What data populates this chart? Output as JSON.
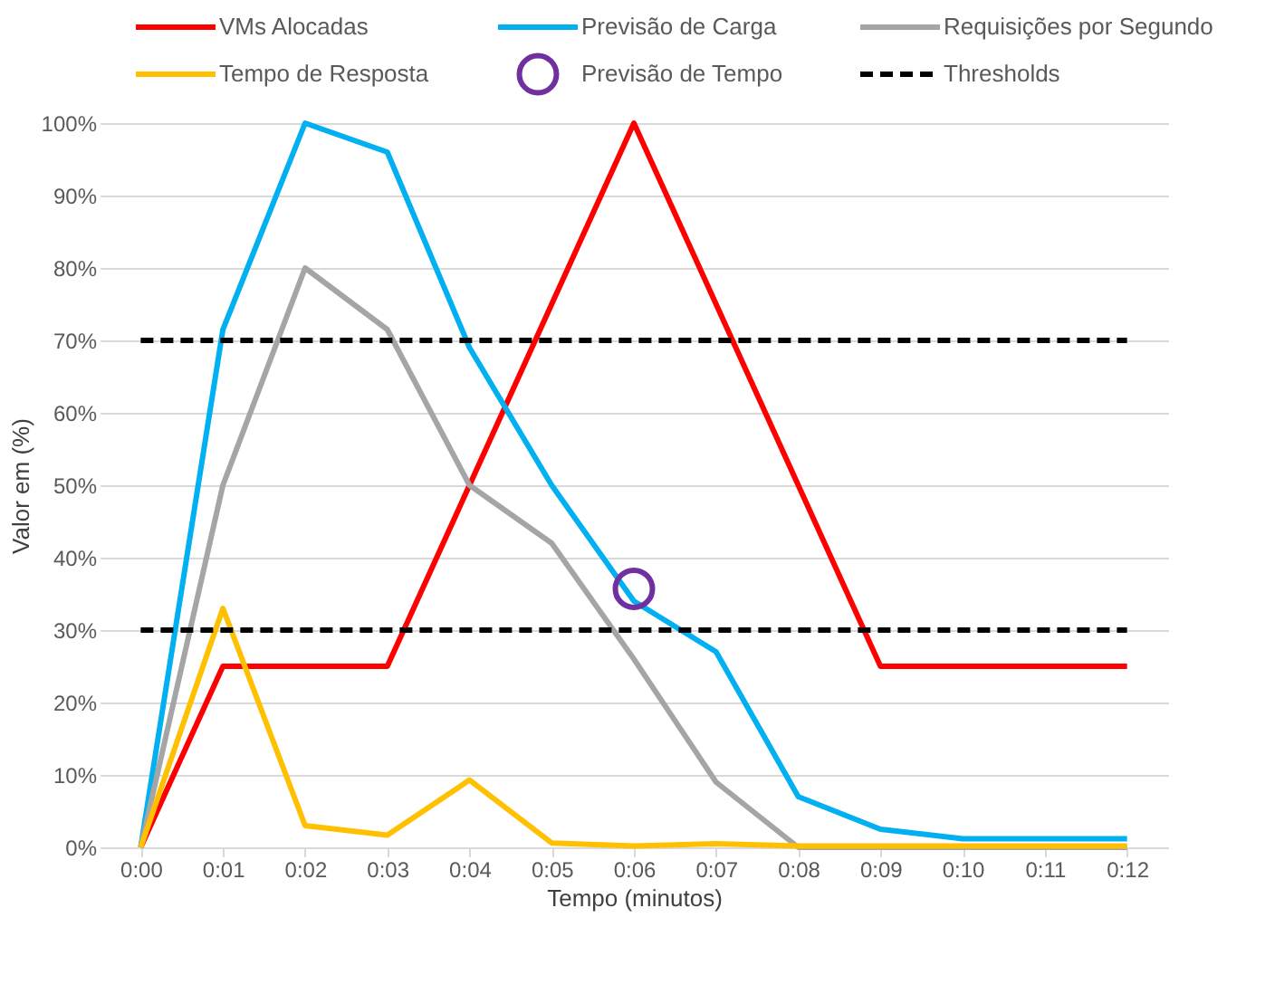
{
  "chart_data": {
    "type": "line",
    "xlabel": "Tempo (minutos)",
    "ylabel": "Valor em (%)",
    "categories": [
      "0:00",
      "0:01",
      "0:02",
      "0:03",
      "0:04",
      "0:05",
      "0:06",
      "0:07",
      "0:08",
      "0:09",
      "0:10",
      "0:11",
      "0:12"
    ],
    "series": [
      {
        "name": "VMs Alocadas",
        "color": "#ff0000",
        "values": [
          0,
          25,
          25,
          25,
          50,
          75,
          100,
          75,
          50,
          25,
          25,
          25,
          25
        ]
      },
      {
        "name": "Previsão de Carga",
        "color": "#00b0f0",
        "values": [
          0,
          71.5,
          100,
          96,
          69,
          50,
          34,
          27,
          7,
          2.5,
          1.2,
          1.2,
          1.2
        ]
      },
      {
        "name": "Requisições por Segundo",
        "color": "#a5a5a5",
        "values": [
          0,
          50,
          80,
          71.5,
          50,
          42,
          26,
          9,
          0,
          0,
          0,
          0,
          0
        ]
      },
      {
        "name": "Tempo de Resposta",
        "color": "#ffc000",
        "values": [
          0,
          33,
          3,
          1.7,
          9.3,
          0.6,
          0.2,
          0.5,
          0.2,
          0.2,
          0.2,
          0.2,
          0.2
        ]
      },
      {
        "name": "Previsão de Tempo",
        "color": "#7030a0",
        "type": "scatter",
        "marker": "circle",
        "values": [
          null,
          null,
          null,
          null,
          null,
          null,
          35.7,
          null,
          null,
          null,
          null,
          null,
          null
        ]
      },
      {
        "name": "Thresholds",
        "color": "#000000",
        "line_style": "dashed",
        "values": [
          70,
          70,
          70,
          70,
          70,
          70,
          70,
          70,
          70,
          70,
          70,
          70,
          70
        ]
      },
      {
        "color": "#000000",
        "line_style": "dashed",
        "values": [
          30,
          30,
          30,
          30,
          30,
          30,
          30,
          30,
          30,
          30,
          30,
          30,
          30
        ]
      }
    ],
    "ylim": [
      0,
      100
    ],
    "yticks": [
      {
        "value": 0,
        "label": "0%"
      },
      {
        "value": 10,
        "label": "10%"
      },
      {
        "value": 20,
        "label": "20%"
      },
      {
        "value": 30,
        "label": "30%"
      },
      {
        "value": 40,
        "label": "40%"
      },
      {
        "value": 50,
        "label": "50%"
      },
      {
        "value": 60,
        "label": "60%"
      },
      {
        "value": 70,
        "label": "70%"
      },
      {
        "value": 80,
        "label": "80%"
      },
      {
        "value": 90,
        "label": "90%"
      },
      {
        "value": 100,
        "label": "100%"
      }
    ],
    "grid": "y",
    "legend": "top",
    "marker": "none"
  }
}
